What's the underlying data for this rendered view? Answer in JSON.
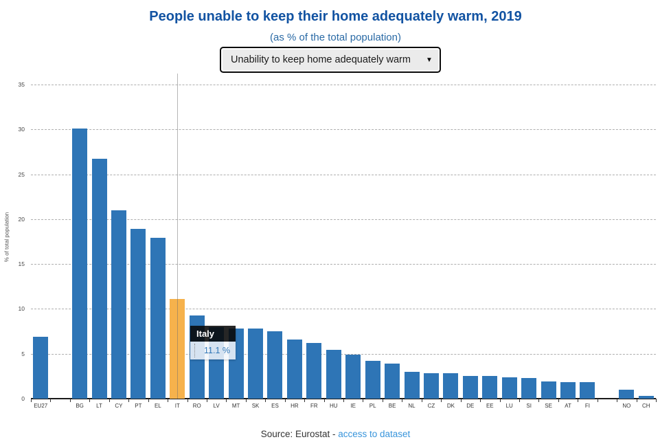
{
  "header": {
    "title": "People unable to keep their home adequately warm, 2019",
    "subtitle": "(as % of the total population)",
    "dropdown": {
      "selected_option": "Unability to keep home adequately warm",
      "caret_icon": "▼"
    }
  },
  "chart_data": {
    "type": "bar",
    "title": "People unable to keep their home adequately warm, 2019",
    "subtitle": "(as % of the total population)",
    "xlabel": "",
    "ylabel": "% of total population",
    "ylim": [
      0,
      35
    ],
    "yticks": [
      0,
      5,
      10,
      15,
      20,
      25,
      30,
      35
    ],
    "grid": "horizontal-dashed",
    "legend": "none",
    "bar_color": "#2e75b6",
    "highlight_color": "#f6b24c",
    "highlighted_category": "IT",
    "categories": [
      "EU27",
      "",
      "BG",
      "LT",
      "CY",
      "PT",
      "EL",
      "IT",
      "RO",
      "LV",
      "MT",
      "SK",
      "ES",
      "HR",
      "FR",
      "HU",
      "IE",
      "PL",
      "BE",
      "NL",
      "CZ",
      "DK",
      "DE",
      "EE",
      "LU",
      "SI",
      "SE",
      "AT",
      "FI",
      "",
      "NO",
      "CH"
    ],
    "values": [
      6.9,
      null,
      30.1,
      26.7,
      21.0,
      18.9,
      17.9,
      11.1,
      9.3,
      8.0,
      7.8,
      7.8,
      7.5,
      6.6,
      6.2,
      5.4,
      4.9,
      4.2,
      3.9,
      3.0,
      2.8,
      2.8,
      2.5,
      2.5,
      2.4,
      2.3,
      1.9,
      1.8,
      1.8,
      null,
      1.0,
      0.3
    ]
  },
  "tooltip": {
    "country": "Italy",
    "value": 11.1,
    "unit": "%",
    "value_label": "11.1 %"
  },
  "footer": {
    "source_prefix": "Source: Eurostat - ",
    "link_label": "access to dataset"
  }
}
